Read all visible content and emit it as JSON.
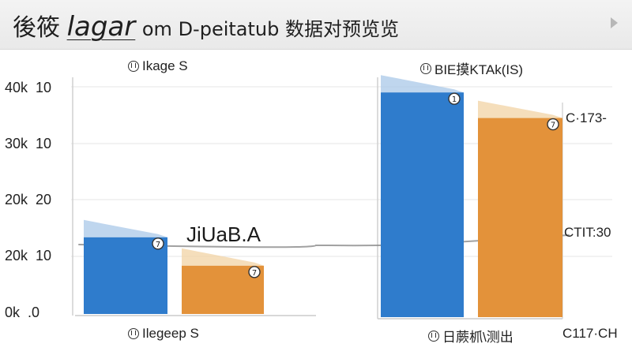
{
  "header": {
    "title_part1": "後筱",
    "title_part2": "lagar",
    "title_part3": "om D-peitatub 数据对预览览"
  },
  "colors": {
    "blue": "#2f7ccc",
    "orange": "#e3923a",
    "blue_light": "#a9c8e8",
    "orange_light": "#f2d3a4",
    "trend": "#8a8a8a"
  },
  "chart_data": {
    "type": "bar",
    "y_ticks": [
      "40k  10",
      "30k  10",
      "20k  20",
      "20k  10",
      "0k  .0"
    ],
    "ylim": [
      0,
      40000
    ],
    "grid": true,
    "panels": [
      {
        "title": "Ikage S",
        "xlabel": "Ilegeep S",
        "bars": [
          {
            "value": 13500,
            "color": "blue",
            "marker": "7"
          },
          {
            "value": 8500,
            "color": "orange",
            "marker": "7"
          }
        ]
      },
      {
        "title": "BIE摸KTAk(IS)",
        "xlabel": "日蕨枛\\测出",
        "bars": [
          {
            "value": 39000,
            "color": "blue",
            "marker": "1"
          },
          {
            "value": 34500,
            "color": "orange",
            "marker": "7"
          }
        ]
      }
    ],
    "annotations": {
      "center": "JiUaB.A",
      "right_top": "C·173-",
      "right_mid": "CTIT:30",
      "right_bottom": "C117·CH"
    }
  }
}
